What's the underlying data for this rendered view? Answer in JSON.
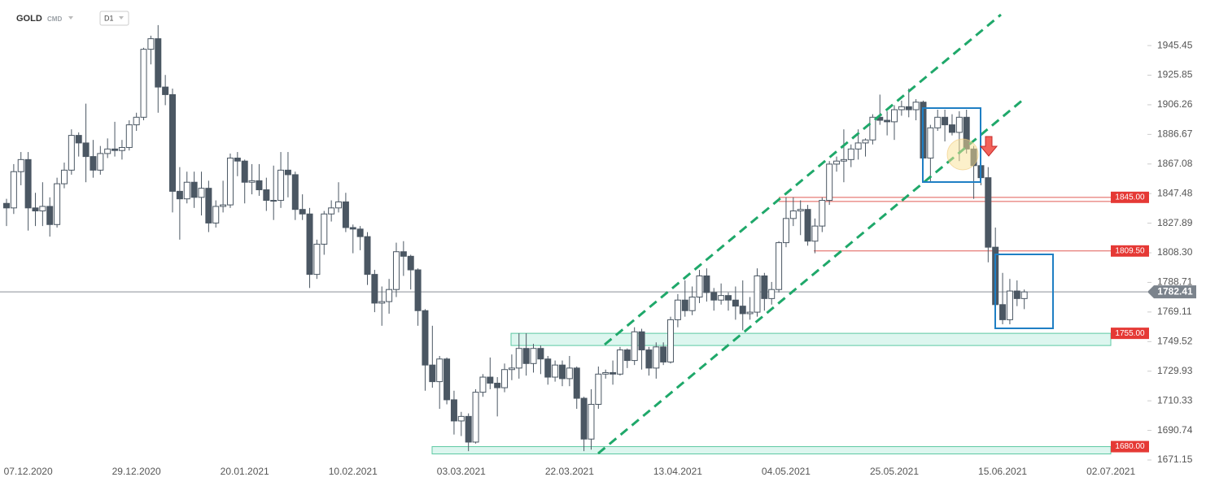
{
  "chart_data": {
    "type": "candlestick",
    "title": "GOLD",
    "subtitle": "CMD",
    "timeframe": "D1",
    "up_color": "#ffffff",
    "down_color": "#4b5763",
    "categories": [
      null,
      null,
      null,
      "07.12.2020",
      null,
      null,
      null,
      null,
      null,
      null,
      null,
      null,
      null,
      null,
      null,
      null,
      null,
      null,
      "29.12.2020",
      null,
      null,
      null,
      null,
      null,
      null,
      null,
      null,
      null,
      null,
      null,
      null,
      null,
      null,
      "20.01.2021",
      null,
      null,
      null,
      null,
      null,
      null,
      null,
      null,
      null,
      null,
      null,
      null,
      null,
      null,
      "10.02.2021",
      null,
      null,
      null,
      null,
      null,
      null,
      null,
      null,
      null,
      null,
      null,
      null,
      null,
      null,
      "03.03.2021",
      null,
      null,
      null,
      null,
      null,
      null,
      null,
      null,
      null,
      null,
      null,
      null,
      null,
      null,
      "22.03.2021",
      null,
      null,
      null,
      null,
      null,
      null,
      null,
      null,
      null,
      null,
      null,
      null,
      null,
      null,
      "13.04.2021",
      null,
      null,
      null,
      null,
      null,
      null,
      null,
      null,
      null,
      null,
      null,
      null,
      null,
      null,
      "04.05.2021",
      null,
      null,
      null,
      null,
      null,
      null,
      null,
      null,
      null,
      null,
      null,
      null,
      null,
      null,
      "25.05.2021",
      null,
      null,
      null,
      null,
      null,
      null,
      null,
      null,
      null,
      null,
      null,
      null,
      null,
      null,
      "15.06.2021",
      null,
      null,
      null,
      null,
      null,
      null,
      null,
      null,
      null,
      null,
      null,
      null,
      null,
      null,
      "02.07.2021"
    ],
    "open": [
      1841,
      1838,
      1862,
      1870,
      1838,
      1836,
      1839,
      1827,
      1854,
      1863,
      1886,
      1881,
      1872,
      1863,
      1874,
      1877,
      1876,
      1878,
      1893,
      1898,
      1943,
      1950,
      1918,
      1913,
      1849,
      1844,
      1855,
      1845,
      1851,
      1828,
      1839,
      1840,
      1871,
      1869,
      1855,
      1856,
      1850,
      1843,
      1843,
      1863,
      1860,
      1837,
      1834,
      1794,
      1814,
      1834,
      1838,
      1842,
      1825,
      1824,
      1819,
      1794,
      1775,
      1776,
      1784,
      1809,
      1806,
      1797,
      1770,
      1734,
      1723,
      1738,
      1711,
      1697,
      1700,
      1683,
      1716,
      1726,
      1722,
      1719,
      1731,
      1732,
      1745,
      1735,
      1745,
      1738,
      1726,
      1734,
      1725,
      1732,
      1712,
      1685,
      1708,
      1728,
      1729,
      1728,
      1744,
      1737,
      1756,
      1744,
      1732,
      1746,
      1736,
      1764,
      1777,
      1770,
      1779,
      1793,
      1782,
      1777,
      1780,
      1777,
      1773,
      1768,
      1769,
      1793,
      1778,
      1784,
      1815,
      1831,
      1836,
      1837,
      1816,
      1826,
      1843,
      1867,
      1869,
      1870,
      1877,
      1881,
      1883,
      1898,
      1896,
      1895,
      1903,
      1905,
      1903,
      1908,
      1871,
      1891,
      1898,
      1893,
      1888,
      1898,
      1877,
      1866,
      1858,
      1812,
      1774,
      1764,
      1783,
      1778,
      null,
      null,
      null,
      null,
      null,
      null,
      null,
      null,
      null,
      null,
      null,
      null
    ],
    "high": [
      1844,
      1867,
      1875,
      1875,
      1848,
      1855,
      1845,
      1858,
      1868,
      1890,
      1888,
      1907,
      1883,
      1879,
      1884,
      1895,
      1883,
      1896,
      1901,
      1944,
      1952,
      1959,
      1926,
      1917,
      1865,
      1862,
      1862,
      1862,
      1856,
      1843,
      1856,
      1874,
      1875,
      1870,
      1867,
      1867,
      1858,
      1866,
      1875,
      1875,
      1862,
      1847,
      1838,
      1817,
      1836,
      1843,
      1855,
      1848,
      1827,
      1826,
      1822,
      1797,
      1786,
      1791,
      1815,
      1816,
      1807,
      1798,
      1771,
      1760,
      1740,
      1739,
      1717,
      1703,
      1702,
      1718,
      1728,
      1739,
      1726,
      1735,
      1741,
      1755,
      1755,
      1748,
      1747,
      1740,
      1737,
      1737,
      1740,
      1733,
      1713,
      1718,
      1733,
      1731,
      1737,
      1746,
      1745,
      1759,
      1758,
      1746,
      1749,
      1749,
      1766,
      1781,
      1790,
      1786,
      1797,
      1798,
      1785,
      1788,
      1782,
      1786,
      1790,
      1779,
      1798,
      1795,
      1789,
      1816,
      1845,
      1845,
      1843,
      1840,
      1831,
      1845,
      1869,
      1872,
      1890,
      1880,
      1890,
      1884,
      1900,
      1913,
      1902,
      1906,
      1909,
      1917,
      1910,
      1909,
      1893,
      1903,
      1903,
      1900,
      1902,
      1903,
      1879,
      1869,
      1865,
      1825,
      1795,
      1791,
      1790,
      1784,
      null,
      null,
      null,
      null,
      null,
      null,
      null,
      null,
      null,
      null,
      null,
      null
    ],
    "low": [
      1826,
      1834,
      1853,
      1823,
      1826,
      1826,
      1819,
      1825,
      1851,
      1860,
      1872,
      1855,
      1858,
      1860,
      1871,
      1872,
      1870,
      1876,
      1889,
      1896,
      1933,
      1901,
      1906,
      1835,
      1817,
      1841,
      1838,
      1833,
      1822,
      1825,
      1835,
      1838,
      1859,
      1841,
      1847,
      1846,
      1836,
      1830,
      1838,
      1845,
      1830,
      1830,
      1785,
      1791,
      1807,
      1829,
      1835,
      1822,
      1808,
      1810,
      1787,
      1769,
      1760,
      1768,
      1779,
      1793,
      1784,
      1760,
      1717,
      1719,
      1705,
      1708,
      1688,
      1687,
      1677,
      1682,
      1713,
      1718,
      1700,
      1716,
      1724,
      1725,
      1727,
      1729,
      1728,
      1721,
      1723,
      1720,
      1720,
      1705,
      1677,
      1678,
      1705,
      1725,
      1721,
      1727,
      1732,
      1734,
      1731,
      1727,
      1725,
      1734,
      1735,
      1759,
      1766,
      1767,
      1775,
      1776,
      1770,
      1774,
      1770,
      1764,
      1757,
      1764,
      1766,
      1770,
      1774,
      1782,
      1812,
      1826,
      1820,
      1813,
      1808,
      1822,
      1840,
      1862,
      1855,
      1865,
      1870,
      1872,
      1880,
      1893,
      1886,
      1883,
      1899,
      1898,
      1896,
      1864,
      1855,
      1889,
      1882,
      1886,
      1869,
      1874,
      1844,
      1853,
      1802,
      1768,
      1761,
      1761,
      1773,
      1771,
      null,
      null,
      null,
      null,
      null,
      null,
      null,
      null,
      null,
      null,
      null,
      null
    ],
    "close": [
      1838,
      1862,
      1870,
      1838,
      1836,
      1839,
      1827,
      1854,
      1863,
      1886,
      1881,
      1872,
      1863,
      1874,
      1877,
      1876,
      1878,
      1893,
      1898,
      1943,
      1950,
      1918,
      1913,
      1849,
      1844,
      1855,
      1845,
      1851,
      1828,
      1839,
      1840,
      1871,
      1869,
      1855,
      1856,
      1850,
      1843,
      1843,
      1863,
      1860,
      1837,
      1834,
      1794,
      1814,
      1834,
      1838,
      1842,
      1825,
      1824,
      1819,
      1794,
      1775,
      1776,
      1784,
      1809,
      1806,
      1797,
      1770,
      1734,
      1723,
      1738,
      1711,
      1697,
      1700,
      1683,
      1716,
      1726,
      1722,
      1719,
      1731,
      1732,
      1745,
      1735,
      1745,
      1738,
      1726,
      1734,
      1725,
      1732,
      1712,
      1685,
      1708,
      1728,
      1729,
      1728,
      1744,
      1737,
      1756,
      1744,
      1732,
      1746,
      1736,
      1764,
      1777,
      1770,
      1779,
      1793,
      1782,
      1777,
      1780,
      1777,
      1773,
      1768,
      1769,
      1793,
      1778,
      1784,
      1815,
      1831,
      1836,
      1837,
      1816,
      1826,
      1843,
      1867,
      1869,
      1870,
      1877,
      1881,
      1883,
      1898,
      1896,
      1895,
      1903,
      1905,
      1903,
      1908,
      1871,
      1891,
      1898,
      1893,
      1888,
      1898,
      1877,
      1866,
      1858,
      1812,
      1774,
      1764,
      1783,
      1778,
      1782.41,
      null,
      null,
      null,
      null,
      null,
      null,
      null,
      null,
      null,
      null,
      null,
      null
    ],
    "ylim": [
      1667.92,
      1975.62
    ],
    "yticks": [
      1671.15,
      1690.74,
      1710.33,
      1729.93,
      1749.52,
      1769.11,
      1788.71,
      {
        "value": 1808.3,
        "label": "1808.30"
      },
      1827.89,
      1847.48,
      1867.08,
      1886.67,
      1906.26,
      1925.85,
      1945.45
    ],
    "levels": [
      {
        "value": 1845,
        "label": "1845.00"
      },
      {
        "value": 1809.5,
        "label": "1809.50"
      },
      {
        "value": 1755,
        "label": "1755.00"
      },
      {
        "value": 1680,
        "label": "1680.00"
      }
    ],
    "last_price": 1782.41
  }
}
